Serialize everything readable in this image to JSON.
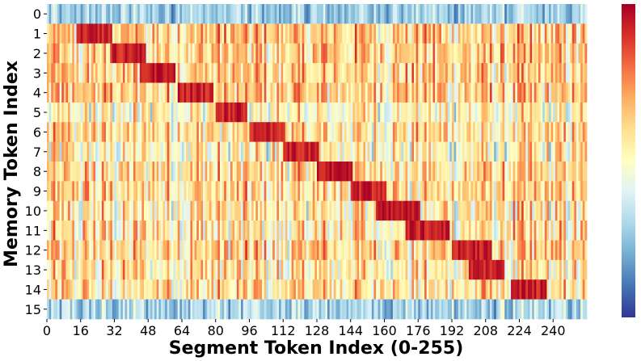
{
  "chart_data": {
    "type": "heatmap",
    "title": "",
    "xlabel": "Segment Token Index (0-255)",
    "ylabel": "Memory Token Index",
    "rows": 16,
    "cols": 256,
    "x_tick_values": [
      0,
      16,
      32,
      48,
      64,
      80,
      96,
      112,
      128,
      144,
      160,
      176,
      192,
      208,
      224,
      240
    ],
    "y_tick_values": [
      0,
      1,
      2,
      3,
      4,
      5,
      6,
      7,
      8,
      9,
      10,
      11,
      12,
      13,
      14,
      15
    ],
    "colormap": "RdYlBu_r",
    "colorbar": true,
    "colorbar_ticks": false,
    "value_range": [
      0,
      1
    ],
    "row_profiles": [
      {
        "row": 0,
        "base": 0.28,
        "spread": 0.18,
        "hot_from": null,
        "hot_to": null
      },
      {
        "row": 1,
        "base": 0.62,
        "spread": 0.28,
        "hot_from": 14,
        "hot_to": 30
      },
      {
        "row": 2,
        "base": 0.62,
        "spread": 0.28,
        "hot_from": 30,
        "hot_to": 46
      },
      {
        "row": 3,
        "base": 0.62,
        "spread": 0.28,
        "hot_from": 44,
        "hot_to": 60
      },
      {
        "row": 4,
        "base": 0.62,
        "spread": 0.28,
        "hot_from": 62,
        "hot_to": 78
      },
      {
        "row": 5,
        "base": 0.52,
        "spread": 0.28,
        "hot_from": 80,
        "hot_to": 94
      },
      {
        "row": 6,
        "base": 0.58,
        "spread": 0.28,
        "hot_from": 96,
        "hot_to": 112
      },
      {
        "row": 7,
        "base": 0.52,
        "spread": 0.3,
        "hot_from": 112,
        "hot_to": 128
      },
      {
        "row": 8,
        "base": 0.58,
        "spread": 0.28,
        "hot_from": 128,
        "hot_to": 144
      },
      {
        "row": 9,
        "base": 0.58,
        "spread": 0.28,
        "hot_from": 144,
        "hot_to": 160
      },
      {
        "row": 10,
        "base": 0.56,
        "spread": 0.3,
        "hot_from": 156,
        "hot_to": 176
      },
      {
        "row": 11,
        "base": 0.56,
        "spread": 0.3,
        "hot_from": 170,
        "hot_to": 190
      },
      {
        "row": 12,
        "base": 0.6,
        "spread": 0.28,
        "hot_from": 192,
        "hot_to": 210
      },
      {
        "row": 13,
        "base": 0.56,
        "spread": 0.3,
        "hot_from": 200,
        "hot_to": 216
      },
      {
        "row": 14,
        "base": 0.58,
        "spread": 0.28,
        "hot_from": 220,
        "hot_to": 236
      },
      {
        "row": 15,
        "base": 0.3,
        "spread": 0.2,
        "hot_from": null,
        "hot_to": null
      }
    ]
  }
}
